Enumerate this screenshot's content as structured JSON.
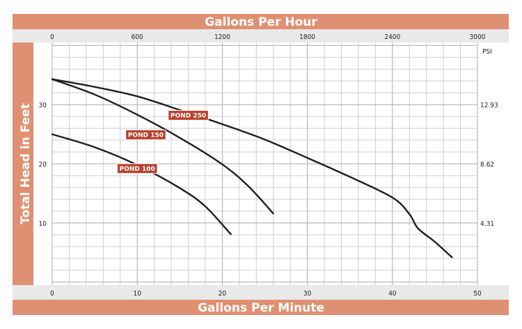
{
  "chart_data": {
    "type": "line",
    "top_axis": {
      "label": "Gallons Per Hour",
      "ticks": [
        "0",
        "600",
        "1200",
        "1800",
        "2400",
        "3000"
      ],
      "range": [
        0,
        3000
      ]
    },
    "x": {
      "label": "Gallons Per Minute",
      "ticks": [
        "0",
        "10",
        "20",
        "30",
        "40",
        "50"
      ],
      "range": [
        0,
        50
      ]
    },
    "y": {
      "label": "Total Head in Feet",
      "ticks": [
        {
          "value": 10,
          "label": "10"
        },
        {
          "value": 20,
          "label": "20"
        },
        {
          "value": 30,
          "label": "30"
        }
      ],
      "range": [
        -0.5,
        40.5
      ]
    },
    "right_axis": {
      "unit": "PSI",
      "ticks": [
        {
          "value": 10,
          "label": "4.31"
        },
        {
          "value": 20,
          "label": "8.62"
        },
        {
          "value": 30,
          "label": "12.93"
        }
      ]
    },
    "grid": true,
    "series": [
      {
        "name": "POND 250",
        "label_at": [
          16,
          28.2
        ],
        "points": [
          [
            0,
            34.3
          ],
          [
            5,
            33
          ],
          [
            10,
            31.4
          ],
          [
            15,
            29.1
          ],
          [
            20,
            26.7
          ],
          [
            25,
            24.1
          ],
          [
            30,
            21
          ],
          [
            35,
            17.8
          ],
          [
            40,
            14.3
          ],
          [
            42,
            11.5
          ],
          [
            43,
            9.1
          ],
          [
            45,
            6.8
          ],
          [
            47,
            4.2
          ]
        ]
      },
      {
        "name": "POND 150",
        "label_at": [
          11,
          24.9
        ],
        "points": [
          [
            0,
            34.3
          ],
          [
            5,
            31.7
          ],
          [
            10,
            28.3
          ],
          [
            15,
            24.4
          ],
          [
            20,
            19.9
          ],
          [
            23,
            16.3
          ],
          [
            26,
            11.6
          ]
        ]
      },
      {
        "name": "POND 100",
        "label_at": [
          10,
          19.2
        ],
        "points": [
          [
            0,
            25
          ],
          [
            5,
            22.8
          ],
          [
            10,
            19.8
          ],
          [
            15,
            15.9
          ],
          [
            18,
            12.8
          ],
          [
            21,
            8.1
          ]
        ]
      }
    ]
  }
}
